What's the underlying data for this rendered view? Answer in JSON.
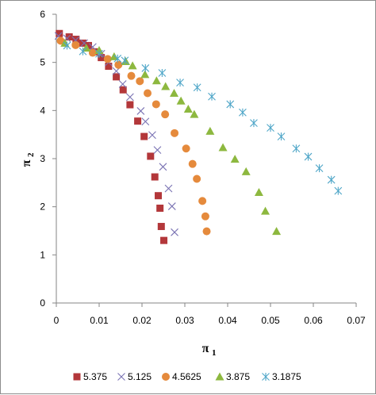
{
  "chart_data": {
    "type": "scatter",
    "title": "",
    "xlabel": "π",
    "xlabel_sub": "1",
    "ylabel": "π",
    "ylabel_sub": "2",
    "xlim": [
      0,
      0.07
    ],
    "ylim": [
      0,
      6
    ],
    "x_ticks": [
      0,
      0.01,
      0.02,
      0.03,
      0.04,
      0.05,
      0.06,
      0.07
    ],
    "x_tick_labels": [
      "0",
      "0.01",
      "0.02",
      "0.03",
      "0.04",
      "0.05",
      "0.06",
      "0.07"
    ],
    "y_ticks": [
      0,
      1,
      2,
      3,
      4,
      5,
      6
    ],
    "y_tick_labels": [
      "0",
      "1",
      "2",
      "3",
      "4",
      "5",
      "6"
    ],
    "grid": false,
    "legend_position": "bottom",
    "series": [
      {
        "name": "5.375",
        "marker": "square",
        "color": "#B3373A",
        "points": [
          [
            0.0007,
            5.6
          ],
          [
            0.003,
            5.53
          ],
          [
            0.0046,
            5.48
          ],
          [
            0.0062,
            5.4
          ],
          [
            0.0075,
            5.35
          ],
          [
            0.0088,
            5.22
          ],
          [
            0.0105,
            5.1
          ],
          [
            0.0122,
            4.92
          ],
          [
            0.014,
            4.7
          ],
          [
            0.0156,
            4.43
          ],
          [
            0.0172,
            4.12
          ],
          [
            0.019,
            3.78
          ],
          [
            0.0205,
            3.46
          ],
          [
            0.022,
            3.05
          ],
          [
            0.023,
            2.62
          ],
          [
            0.0238,
            2.23
          ],
          [
            0.0242,
            1.97
          ],
          [
            0.0245,
            1.59
          ],
          [
            0.0251,
            1.3
          ]
        ]
      },
      {
        "name": "5.125",
        "marker": "x",
        "color": "#7A73B3",
        "points": [
          [
            0.0005,
            5.55
          ],
          [
            0.0025,
            5.5
          ],
          [
            0.0045,
            5.46
          ],
          [
            0.0065,
            5.4
          ],
          [
            0.0085,
            5.32
          ],
          [
            0.0105,
            5.18
          ],
          [
            0.0122,
            5.0
          ],
          [
            0.014,
            4.82
          ],
          [
            0.0155,
            4.55
          ],
          [
            0.0172,
            4.28
          ],
          [
            0.0197,
            3.99
          ],
          [
            0.0208,
            3.77
          ],
          [
            0.0224,
            3.49
          ],
          [
            0.0236,
            3.18
          ],
          [
            0.0249,
            2.83
          ],
          [
            0.0262,
            2.38
          ],
          [
            0.027,
            2.01
          ],
          [
            0.0276,
            1.47
          ]
        ]
      },
      {
        "name": "4.5625",
        "marker": "circle",
        "color": "#E58A3C",
        "points": [
          [
            0.001,
            5.45
          ],
          [
            0.0045,
            5.36
          ],
          [
            0.0085,
            5.2
          ],
          [
            0.012,
            5.07
          ],
          [
            0.0145,
            4.95
          ],
          [
            0.0175,
            4.72
          ],
          [
            0.0195,
            4.61
          ],
          [
            0.0213,
            4.36
          ],
          [
            0.0233,
            4.13
          ],
          [
            0.0254,
            3.92
          ],
          [
            0.0276,
            3.53
          ],
          [
            0.0303,
            3.21
          ],
          [
            0.0318,
            2.89
          ],
          [
            0.0328,
            2.58
          ],
          [
            0.0341,
            2.12
          ],
          [
            0.0348,
            1.8
          ],
          [
            0.0351,
            1.49
          ]
        ]
      },
      {
        "name": "3.875",
        "marker": "triangle",
        "color": "#8DB83F",
        "points": [
          [
            0.002,
            5.4
          ],
          [
            0.007,
            5.3
          ],
          [
            0.01,
            5.25
          ],
          [
            0.0135,
            5.12
          ],
          [
            0.0162,
            5.02
          ],
          [
            0.0178,
            4.93
          ],
          [
            0.0207,
            4.75
          ],
          [
            0.0234,
            4.62
          ],
          [
            0.0255,
            4.5
          ],
          [
            0.0275,
            4.36
          ],
          [
            0.0291,
            4.2
          ],
          [
            0.0308,
            4.03
          ],
          [
            0.0322,
            3.92
          ],
          [
            0.0359,
            3.57
          ],
          [
            0.0389,
            3.23
          ],
          [
            0.0417,
            2.99
          ],
          [
            0.0443,
            2.73
          ],
          [
            0.0473,
            2.3
          ],
          [
            0.0488,
            1.91
          ],
          [
            0.0514,
            1.49
          ]
        ]
      },
      {
        "name": "3.1875",
        "marker": "asterisk",
        "color": "#4FA6C8",
        "points": [
          [
            0.0025,
            5.35
          ],
          [
            0.0062,
            5.23
          ],
          [
            0.01,
            5.18
          ],
          [
            0.0143,
            5.08
          ],
          [
            0.016,
            5.04
          ],
          [
            0.0208,
            4.88
          ],
          [
            0.0247,
            4.78
          ],
          [
            0.0289,
            4.58
          ],
          [
            0.0329,
            4.48
          ],
          [
            0.0363,
            4.29
          ],
          [
            0.0406,
            4.13
          ],
          [
            0.0435,
            3.96
          ],
          [
            0.0461,
            3.74
          ],
          [
            0.05,
            3.64
          ],
          [
            0.0525,
            3.46
          ],
          [
            0.056,
            3.21
          ],
          [
            0.0588,
            3.04
          ],
          [
            0.0614,
            2.8
          ],
          [
            0.0642,
            2.56
          ],
          [
            0.0658,
            2.33
          ]
        ]
      }
    ]
  }
}
